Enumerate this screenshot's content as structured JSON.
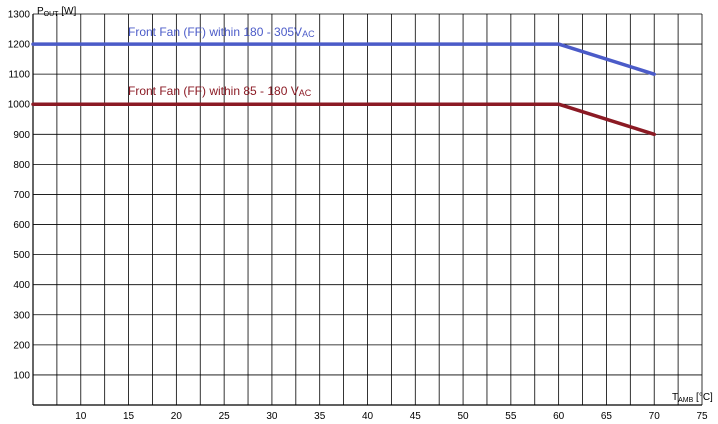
{
  "chart_data": {
    "type": "line",
    "title": "",
    "xlabel": {
      "main": "T",
      "sub": "AMB",
      "unit": " [°C]"
    },
    "ylabel": {
      "main": "P",
      "sub": "OUT",
      "unit": " [W]"
    },
    "xlim": [
      5,
      75
    ],
    "ylim": [
      0,
      1300
    ],
    "xticks": [
      10,
      15,
      20,
      25,
      30,
      35,
      40,
      45,
      50,
      55,
      60,
      65,
      70,
      75
    ],
    "yticks": [
      100,
      200,
      300,
      400,
      500,
      600,
      700,
      800,
      900,
      1000,
      1100,
      1200,
      1300
    ],
    "x_minor_step": 2.5,
    "grid": true,
    "series": [
      {
        "name": {
          "main": "Front Fan (FF) within 180 - 305V",
          "sub": "AC"
        },
        "color": "#4b5bc8",
        "x": [
          5,
          60,
          70
        ],
        "y": [
          1200,
          1200,
          1100
        ]
      },
      {
        "name": {
          "main": "Front Fan (FF) within 85 - 180 V",
          "sub": "AC"
        },
        "color": "#8b1a24",
        "x": [
          5,
          60,
          70
        ],
        "y": [
          1000,
          1000,
          900
        ]
      }
    ]
  }
}
